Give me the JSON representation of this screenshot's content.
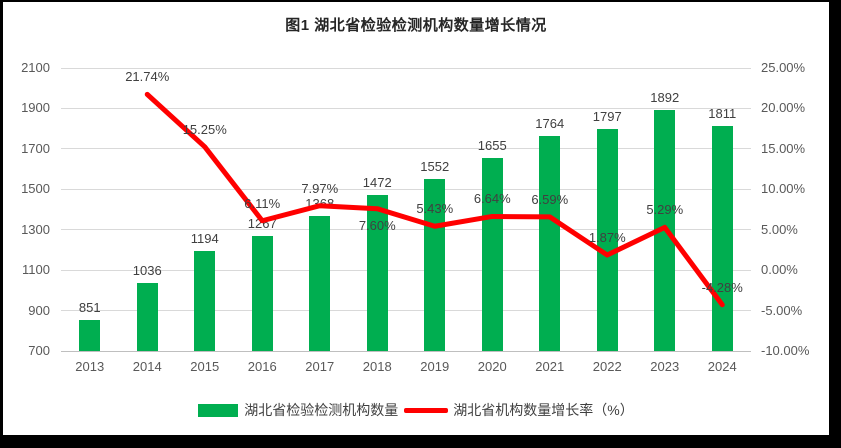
{
  "chart_data": {
    "type": "bar",
    "subtype": "combo-bar-line",
    "title": "图1 湖北省检验检测机构数量增长情况",
    "categories": [
      "2013",
      "2014",
      "2015",
      "2016",
      "2017",
      "2018",
      "2019",
      "2020",
      "2021",
      "2022",
      "2023",
      "2024"
    ],
    "series": [
      {
        "name": "湖北省检验检测机构数量",
        "type": "bar",
        "color": "#00AE50",
        "axis": "left",
        "values": [
          851,
          1036,
          1194,
          1267,
          1368,
          1472,
          1552,
          1655,
          1764,
          1797,
          1892,
          1811
        ],
        "labels": [
          "851",
          "1036",
          "1194",
          "1267",
          "1368",
          "1472",
          "1552",
          "1655",
          "1764",
          "1797",
          "1892",
          "1811"
        ]
      },
      {
        "name": "湖北省机构数量增长率（%）",
        "type": "line",
        "color": "#FF0000",
        "axis": "right",
        "values": [
          null,
          21.74,
          15.25,
          6.11,
          7.97,
          7.6,
          5.43,
          6.64,
          6.59,
          1.87,
          5.29,
          -4.28
        ],
        "labels": [
          null,
          "21.74%",
          "15.25%",
          "6.11%",
          "7.97%",
          "7.60%",
          "5.43%",
          "6.64%",
          "6.59%",
          "1.87%",
          "5.29%",
          "-4.28%"
        ],
        "label_placements": [
          null,
          "above",
          "above",
          "above",
          "above",
          "below",
          "above",
          "above",
          "above",
          "above",
          "above",
          "above"
        ]
      }
    ],
    "left_axis": {
      "min": 700,
      "max": 2100,
      "step": 200,
      "tick_labels": [
        "2100",
        "1900",
        "1700",
        "1500",
        "1300",
        "1100",
        "900",
        "700"
      ]
    },
    "right_axis": {
      "min": -10,
      "max": 25,
      "step": 5,
      "tick_labels": [
        "25.00%",
        "20.00%",
        "15.00%",
        "10.00%",
        "5.00%",
        "0.00%",
        "-5.00%",
        "-10.00%"
      ]
    },
    "grid": true,
    "legend_position": "bottom"
  },
  "colors": {
    "bar": "#00AE50",
    "line": "#FF0000",
    "gridline": "#D9D9D9",
    "axis_text": "#595959",
    "data_label_text": "#404040",
    "frame": "#000000",
    "background": "#FFFFFF"
  }
}
